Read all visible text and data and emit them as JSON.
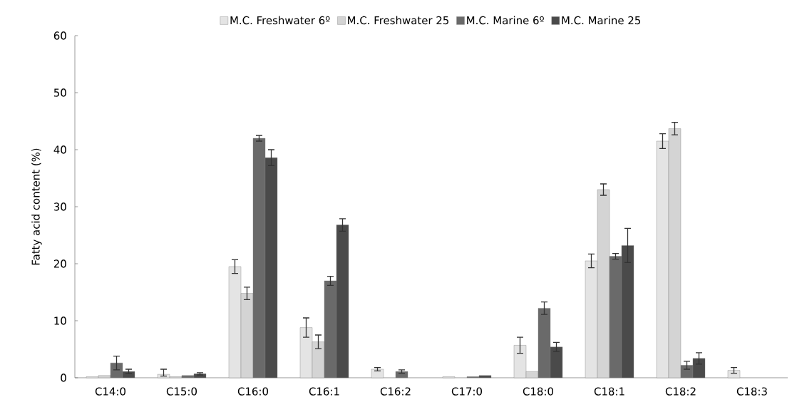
{
  "chart_data": {
    "type": "bar",
    "ylabel": "Fatty acid content (%)",
    "categories": [
      "C14:0",
      "C15:0",
      "C16:0",
      "C16:1",
      "C16:2",
      "C17:0",
      "C18:0",
      "C18:1",
      "C18:2",
      "C18:3"
    ],
    "series": [
      {
        "name": "M.C. Freshwater 6º",
        "color": "#e4e4e4",
        "values": [
          0.2,
          0.6,
          19.5,
          8.8,
          1.5,
          0.2,
          5.7,
          20.5,
          41.5,
          1.3
        ],
        "errors": [
          null,
          [
            0.3,
            1.5
          ],
          1.2,
          1.7,
          0.3,
          null,
          1.4,
          1.2,
          1.3,
          0.5
        ]
      },
      {
        "name": "M.C. Freshwater 25",
        "color": "#d4d4d4",
        "values": [
          0.4,
          0.2,
          14.8,
          6.3,
          null,
          null,
          1.1,
          33.0,
          43.7,
          null
        ],
        "errors": [
          null,
          null,
          1.1,
          1.2,
          null,
          null,
          null,
          1.0,
          1.1,
          null
        ]
      },
      {
        "name": "M.C. Marine 6º",
        "color": "#6a6a6a",
        "values": [
          2.6,
          0.4,
          42.0,
          17.0,
          1.1,
          0.2,
          12.2,
          21.3,
          2.2,
          null
        ],
        "errors": [
          1.2,
          null,
          0.5,
          0.8,
          0.3,
          null,
          1.1,
          0.5,
          0.7,
          null
        ]
      },
      {
        "name": "M.C. Marine 25",
        "color": "#4a4a4a",
        "values": [
          1.1,
          0.7,
          38.6,
          26.8,
          null,
          0.4,
          5.4,
          23.2,
          3.4,
          null
        ],
        "errors": [
          0.4,
          0.2,
          1.4,
          1.1,
          null,
          null,
          0.8,
          3.0,
          1.0,
          null
        ]
      }
    ],
    "ylim": [
      0,
      60
    ],
    "yticks": [
      0,
      10,
      20,
      30,
      40,
      50,
      60
    ],
    "grid": false,
    "legend": "top"
  }
}
